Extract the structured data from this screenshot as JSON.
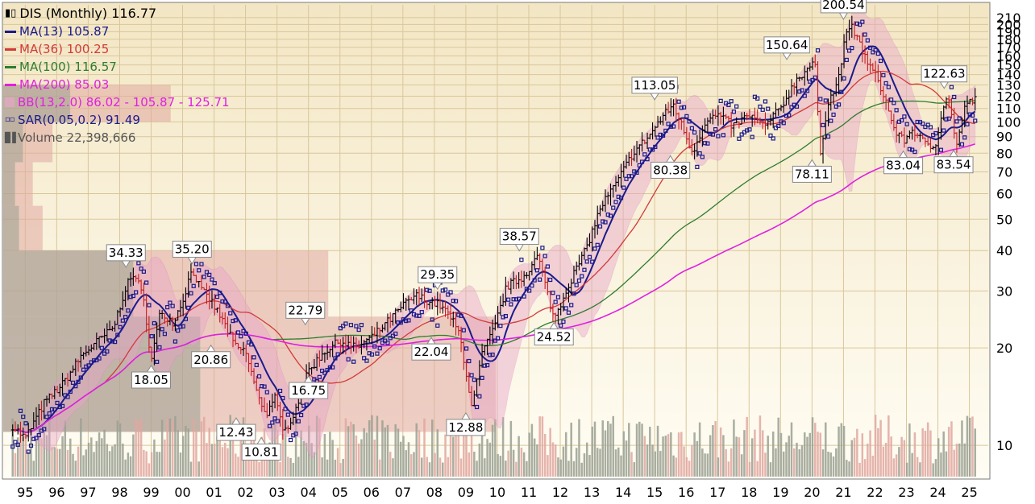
{
  "chart_data": {
    "type": "line",
    "title": "DIS (Monthly) 116.77",
    "y_scale": "log",
    "ylim": [
      8,
      230
    ],
    "x_range": [
      1994.3,
      2025.6
    ],
    "x_ticks": [
      {
        "label": "95",
        "year": 1995
      },
      {
        "label": "96",
        "year": 1996
      },
      {
        "label": "97",
        "year": 1997
      },
      {
        "label": "98",
        "year": 1998
      },
      {
        "label": "99",
        "year": 1999
      },
      {
        "label": "00",
        "year": 2000
      },
      {
        "label": "01",
        "year": 2001
      },
      {
        "label": "02",
        "year": 2002
      },
      {
        "label": "03",
        "year": 2003
      },
      {
        "label": "04",
        "year": 2004
      },
      {
        "label": "05",
        "year": 2005
      },
      {
        "label": "06",
        "year": 2006
      },
      {
        "label": "07",
        "year": 2007
      },
      {
        "label": "08",
        "year": 2008
      },
      {
        "label": "09",
        "year": 2009
      },
      {
        "label": "10",
        "year": 2010
      },
      {
        "label": "11",
        "year": 2011
      },
      {
        "label": "12",
        "year": 2012
      },
      {
        "label": "13",
        "year": 2013
      },
      {
        "label": "14",
        "year": 2014
      },
      {
        "label": "15",
        "year": 2015
      },
      {
        "label": "16",
        "year": 2016
      },
      {
        "label": "17",
        "year": 2017
      },
      {
        "label": "18",
        "year": 2018
      },
      {
        "label": "19",
        "year": 2019
      },
      {
        "label": "20",
        "year": 2020
      },
      {
        "label": "21",
        "year": 2021
      },
      {
        "label": "22",
        "year": 2022
      },
      {
        "label": "23",
        "year": 2023
      },
      {
        "label": "24",
        "year": 2024
      },
      {
        "label": "25",
        "year": 2025
      }
    ],
    "y_ticks": [
      10,
      20,
      30,
      40,
      50,
      60,
      70,
      80,
      90,
      100,
      110,
      120,
      130,
      140,
      150,
      160,
      170,
      180,
      190,
      200,
      210
    ],
    "price": {
      "name": "DIS",
      "years": [
        1994.6,
        1995.0,
        1995.6,
        1996.2,
        1996.8,
        1997.3,
        1997.8,
        1998.2,
        1998.5,
        1998.8,
        1999.0,
        1999.3,
        1999.7,
        2000.0,
        2000.3,
        2000.6,
        2000.9,
        2001.3,
        2001.7,
        2002.0,
        2002.4,
        2002.7,
        2002.9,
        2003.2,
        2003.6,
        2004.0,
        2004.5,
        2005.0,
        2005.5,
        2006.0,
        2006.5,
        2007.0,
        2007.4,
        2007.8,
        2008.2,
        2008.5,
        2008.8,
        2009.0,
        2009.2,
        2009.5,
        2009.9,
        2010.3,
        2010.8,
        2011.3,
        2011.5,
        2011.8,
        2012.3,
        2012.8,
        2013.3,
        2013.8,
        2014.3,
        2014.8,
        2015.3,
        2015.6,
        2015.9,
        2016.2,
        2016.6,
        2017.0,
        2017.5,
        2018.0,
        2018.5,
        2019.0,
        2019.5,
        2019.9,
        2020.1,
        2020.25,
        2020.5,
        2020.8,
        2021.0,
        2021.2,
        2021.5,
        2021.8,
        2022.0,
        2022.3,
        2022.6,
        2022.9,
        2023.2,
        2023.6,
        2023.9,
        2024.1,
        2024.3,
        2024.6,
        2024.9,
        2025.2
      ],
      "values": [
        11.5,
        10.5,
        13.5,
        15.5,
        19.0,
        21.0,
        23.0,
        31.0,
        34.0,
        27.0,
        18.05,
        26.0,
        24.0,
        28.0,
        35.2,
        30.0,
        28.0,
        24.0,
        20.0,
        19.5,
        14.0,
        12.43,
        14.5,
        10.81,
        13.0,
        17.0,
        19.5,
        21.0,
        20.0,
        21.5,
        24.0,
        27.0,
        29.0,
        28.0,
        27.0,
        25.0,
        22.04,
        17.0,
        12.88,
        19.0,
        23.0,
        31.0,
        33.0,
        38.57,
        32.0,
        24.52,
        32.0,
        40.0,
        55.0,
        65.0,
        80.0,
        90.0,
        105.0,
        113.05,
        95.0,
        80.38,
        100.0,
        105.0,
        97.0,
        105.0,
        97.0,
        110.0,
        135.0,
        148.0,
        150.64,
        78.11,
        115.0,
        130.0,
        170.0,
        200.54,
        175.0,
        150.0,
        140.0,
        120.0,
        95.0,
        87.0,
        95.0,
        85.0,
        83.04,
        105.0,
        122.63,
        85.0,
        115.0,
        116.77
      ]
    },
    "annotations": [
      {
        "text": "34.33",
        "year": 1998.2,
        "value": 34.33,
        "pos": "above"
      },
      {
        "text": "35.20",
        "year": 2000.3,
        "value": 35.2,
        "pos": "above"
      },
      {
        "text": "18.05",
        "year": 1999.0,
        "value": 18.05,
        "pos": "below"
      },
      {
        "text": "20.86",
        "year": 2000.9,
        "value": 20.86,
        "pos": "below"
      },
      {
        "text": "12.43",
        "year": 2001.7,
        "value": 12.43,
        "pos": "below"
      },
      {
        "text": "10.81",
        "year": 2002.5,
        "value": 10.81,
        "pos": "below"
      },
      {
        "text": "22.79",
        "year": 2003.9,
        "value": 22.79,
        "pos": "above"
      },
      {
        "text": "16.75",
        "year": 2004.0,
        "value": 16.75,
        "pos": "below"
      },
      {
        "text": "29.35",
        "year": 2008.1,
        "value": 29.35,
        "pos": "above"
      },
      {
        "text": "22.04",
        "year": 2007.9,
        "value": 22.04,
        "pos": "below"
      },
      {
        "text": "12.88",
        "year": 2009.0,
        "value": 12.88,
        "pos": "below"
      },
      {
        "text": "38.57",
        "year": 2010.7,
        "value": 38.57,
        "pos": "above"
      },
      {
        "text": "24.52",
        "year": 2011.8,
        "value": 24.52,
        "pos": "below"
      },
      {
        "text": "113.05",
        "year": 2015.0,
        "value": 113.05,
        "pos": "above"
      },
      {
        "text": "80.38",
        "year": 2015.5,
        "value": 80.38,
        "pos": "below"
      },
      {
        "text": "150.64",
        "year": 2019.2,
        "value": 150.64,
        "pos": "above"
      },
      {
        "text": "78.11",
        "year": 2020.0,
        "value": 78.11,
        "pos": "below"
      },
      {
        "text": "200.54",
        "year": 2021.0,
        "value": 200.54,
        "pos": "above"
      },
      {
        "text": "83.04",
        "year": 2022.9,
        "value": 83.04,
        "pos": "below"
      },
      {
        "text": "122.63",
        "year": 2024.2,
        "value": 122.63,
        "pos": "above"
      },
      {
        "text": "83.54",
        "year": 2024.5,
        "value": 83.54,
        "pos": "below"
      }
    ],
    "legend": [
      {
        "key": "ma13",
        "text": "MA(13) 105.87",
        "color": "#1a1a8c",
        "kind": "line"
      },
      {
        "key": "ma36",
        "text": "MA(36) 100.25",
        "color": "#d23a3a",
        "kind": "line"
      },
      {
        "key": "ma100",
        "text": "MA(100) 116.57",
        "color": "#2e7d2e",
        "kind": "line"
      },
      {
        "key": "ma200",
        "text": "MA(200) 85.03",
        "color": "#e020e0",
        "kind": "line"
      },
      {
        "key": "bb",
        "text": "BB(13,2.0) 86.02 - 105.87 - 125.71",
        "color": "#e020e0",
        "kind": "band"
      },
      {
        "key": "sar",
        "text": "SAR(0.05,0.2) 91.49",
        "color": "#1a1a8c",
        "kind": "dots"
      },
      {
        "key": "volume",
        "text": "Volume 22,398,666",
        "color": "#555555",
        "kind": "volume"
      }
    ],
    "grid": true,
    "legend_placement": "top-left"
  },
  "colors": {
    "background_top": "#f5eccf",
    "background_bottom": "#fffdf2",
    "grid": "#d9c79a",
    "price_up": "#000000",
    "price_down": "#c41e1e",
    "ma13": "#1a1a8c",
    "ma36": "#d23a3a",
    "ma100": "#2e7d2e",
    "ma200": "#e020e0",
    "bb_fill": "#e8a5c8",
    "sar": "#1a1a8c",
    "volume_up": "#9aa092",
    "volume_down": "#e0a7a0"
  }
}
